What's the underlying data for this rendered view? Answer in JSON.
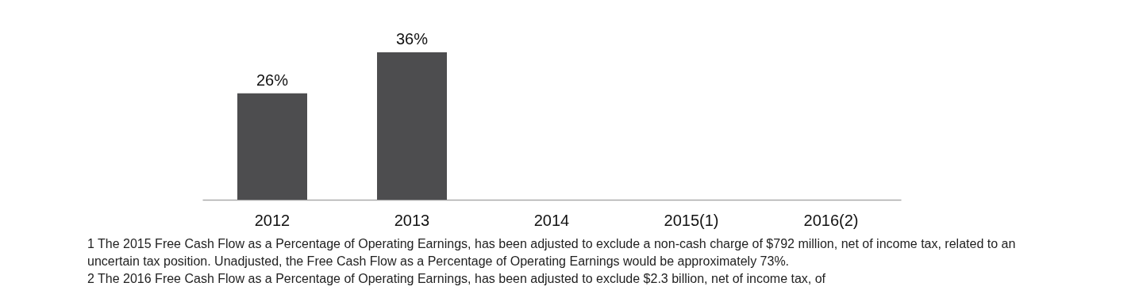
{
  "chart_data": {
    "type": "bar",
    "categories": [
      "2012",
      "2013",
      "2014",
      "2015(1)",
      "2016(2)"
    ],
    "values": [
      26,
      36,
      null,
      null,
      null
    ],
    "value_labels": [
      "26%",
      "36%",
      null,
      null,
      null
    ],
    "colors": [
      "#4d4d4f",
      "#4d4d4f",
      "#4d4d4f",
      "#4d4d4f",
      "#0070ba"
    ],
    "grid": false,
    "legend": false,
    "annotations": [
      "1 The 2015 Free Cash Flow as a Percentage of Operating Earnings, has been adjusted to exclude a non-cash charge of $792 million, net of income tax, related to an uncertain tax position. Unadjusted, the Free Cash Flow as a Percentage of Operating Earnings would be approximately 73%.",
      "2 The 2016 Free Cash Flow as a Percentage of Operating Earnings, has been adjusted to exclude $2.3 billion, net of income tax, of"
    ]
  }
}
